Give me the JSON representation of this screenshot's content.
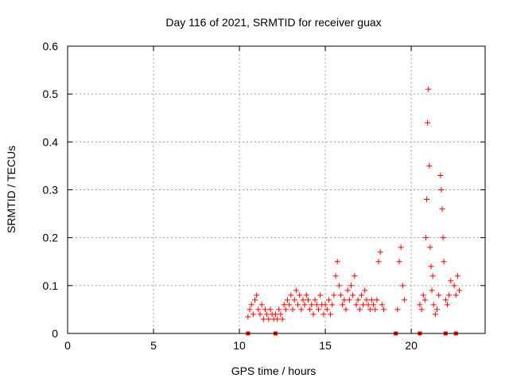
{
  "chart_data": {
    "type": "scatter",
    "title": "Day 116 of 2021, SRMTID for receiver guax",
    "xlabel": "GPS time / hours",
    "ylabel": "SRMTID / TECUs",
    "xlim": [
      0,
      24.3
    ],
    "ylim": [
      0,
      0.6
    ],
    "xticks": [
      0,
      5,
      10,
      15,
      20
    ],
    "xtick_labels": [
      "0",
      "5",
      "10",
      "15",
      "20"
    ],
    "yticks": [
      0,
      0.1,
      0.2,
      0.3,
      0.4,
      0.5,
      0.6
    ],
    "ytick_labels": [
      "0",
      "0.1",
      "0.2",
      "0.3",
      "0.4",
      "0.5",
      "0.6"
    ],
    "grid": true,
    "legend": "none",
    "marker": "plus",
    "color": "#ff0000",
    "series": [
      {
        "values": [
          [
            10.5,
            0.035
          ],
          [
            10.6,
            0.05
          ],
          [
            10.7,
            0.06
          ],
          [
            10.8,
            0.04
          ],
          [
            10.9,
            0.07
          ],
          [
            11.0,
            0.08
          ],
          [
            11.1,
            0.05
          ],
          [
            11.2,
            0.04
          ],
          [
            11.3,
            0.06
          ],
          [
            11.4,
            0.03
          ],
          [
            11.5,
            0.05
          ],
          [
            11.6,
            0.04
          ],
          [
            11.7,
            0.03
          ],
          [
            11.8,
            0.05
          ],
          [
            11.9,
            0.04
          ],
          [
            12.0,
            0.03
          ],
          [
            12.1,
            0.04
          ],
          [
            12.2,
            0.03
          ],
          [
            12.3,
            0.05
          ],
          [
            12.4,
            0.04
          ],
          [
            12.5,
            0.03
          ],
          [
            12.6,
            0.06
          ],
          [
            12.7,
            0.05
          ],
          [
            12.8,
            0.07
          ],
          [
            12.9,
            0.06
          ],
          [
            13.0,
            0.08
          ],
          [
            13.1,
            0.05
          ],
          [
            13.2,
            0.07
          ],
          [
            13.3,
            0.09
          ],
          [
            13.4,
            0.06
          ],
          [
            13.5,
            0.08
          ],
          [
            13.6,
            0.05
          ],
          [
            13.7,
            0.07
          ],
          [
            13.8,
            0.06
          ],
          [
            13.9,
            0.08
          ],
          [
            14.0,
            0.07
          ],
          [
            14.1,
            0.05
          ],
          [
            14.2,
            0.06
          ],
          [
            14.3,
            0.04
          ],
          [
            14.4,
            0.07
          ],
          [
            14.5,
            0.06
          ],
          [
            14.6,
            0.05
          ],
          [
            14.7,
            0.08
          ],
          [
            14.8,
            0.06
          ],
          [
            14.9,
            0.04
          ],
          [
            15.0,
            0.06
          ],
          [
            15.1,
            0.05
          ],
          [
            15.2,
            0.07
          ],
          [
            15.3,
            0.04
          ],
          [
            15.4,
            0.06
          ],
          [
            15.5,
            0.08
          ],
          [
            15.6,
            0.12
          ],
          [
            15.7,
            0.15
          ],
          [
            15.8,
            0.1
          ],
          [
            15.9,
            0.08
          ],
          [
            16.0,
            0.06
          ],
          [
            16.1,
            0.07
          ],
          [
            16.2,
            0.05
          ],
          [
            16.3,
            0.09
          ],
          [
            16.4,
            0.07
          ],
          [
            16.5,
            0.1
          ],
          [
            16.6,
            0.08
          ],
          [
            16.7,
            0.12
          ],
          [
            16.8,
            0.06
          ],
          [
            16.9,
            0.07
          ],
          [
            17.0,
            0.05
          ],
          [
            17.1,
            0.08
          ],
          [
            17.2,
            0.06
          ],
          [
            17.3,
            0.09
          ],
          [
            17.4,
            0.07
          ],
          [
            17.5,
            0.06
          ],
          [
            17.6,
            0.05
          ],
          [
            17.7,
            0.07
          ],
          [
            17.8,
            0.06
          ],
          [
            17.9,
            0.05
          ],
          [
            18.0,
            0.07
          ],
          [
            18.1,
            0.15
          ],
          [
            18.2,
            0.17
          ],
          [
            18.3,
            0.06
          ],
          [
            18.4,
            0.05
          ],
          [
            19.2,
            0.05
          ],
          [
            19.3,
            0.15
          ],
          [
            19.4,
            0.18
          ],
          [
            19.5,
            0.1
          ],
          [
            19.6,
            0.07
          ],
          [
            20.5,
            0.06
          ],
          [
            20.6,
            0.05
          ],
          [
            20.7,
            0.08
          ],
          [
            20.8,
            0.07
          ],
          [
            20.85,
            0.2
          ],
          [
            20.9,
            0.28
          ],
          [
            20.95,
            0.44
          ],
          [
            21.0,
            0.51
          ],
          [
            21.05,
            0.35
          ],
          [
            21.1,
            0.18
          ],
          [
            21.15,
            0.14
          ],
          [
            21.2,
            0.09
          ],
          [
            21.25,
            0.12
          ],
          [
            21.3,
            0.06
          ],
          [
            21.4,
            0.04
          ],
          [
            21.5,
            0.05
          ],
          [
            21.6,
            0.08
          ],
          [
            21.7,
            0.33
          ],
          [
            21.75,
            0.3
          ],
          [
            21.8,
            0.26
          ],
          [
            21.85,
            0.2
          ],
          [
            21.9,
            0.15
          ],
          [
            22.0,
            0.07
          ],
          [
            22.1,
            0.06
          ],
          [
            22.2,
            0.08
          ],
          [
            22.3,
            0.11
          ],
          [
            22.5,
            0.1
          ],
          [
            22.6,
            0.08
          ],
          [
            22.7,
            0.12
          ],
          [
            22.8,
            0.09
          ]
        ]
      }
    ],
    "baseline_x": [
      10.5,
      12.1,
      19.1,
      20.5,
      22.0,
      22.6
    ]
  }
}
